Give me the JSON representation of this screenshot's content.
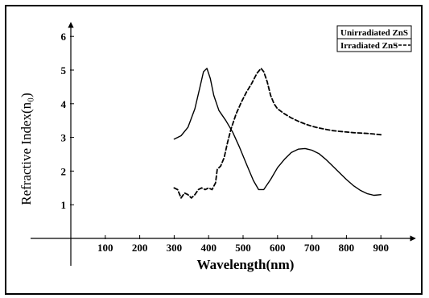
{
  "chart_data": {
    "type": "line",
    "title": "",
    "xlabel": "Wavelength(nm)",
    "ylabel": "Refractive Index(n₀)",
    "xlim": [
      0,
      1000
    ],
    "ylim": [
      0,
      6.5
    ],
    "xticks": [
      100,
      200,
      300,
      400,
      500,
      600,
      700,
      800,
      900
    ],
    "yticks": [
      1,
      2,
      3,
      4,
      5,
      6
    ],
    "grid": false,
    "legend_position": "top-right",
    "series": [
      {
        "name": "Unirradiated ZnS",
        "style": "solid",
        "color": "#000000",
        "x": [
          300,
          320,
          340,
          360,
          375,
          385,
          395,
          405,
          415,
          430,
          450,
          470,
          490,
          510,
          530,
          545,
          560,
          580,
          600,
          620,
          640,
          660,
          680,
          700,
          720,
          740,
          760,
          780,
          800,
          820,
          840,
          860,
          880,
          900
        ],
        "y": [
          2.95,
          3.05,
          3.3,
          3.85,
          4.5,
          4.95,
          5.05,
          4.75,
          4.25,
          3.8,
          3.5,
          3.15,
          2.7,
          2.2,
          1.72,
          1.45,
          1.45,
          1.75,
          2.1,
          2.35,
          2.55,
          2.65,
          2.67,
          2.62,
          2.52,
          2.35,
          2.15,
          1.95,
          1.75,
          1.57,
          1.43,
          1.33,
          1.28,
          1.3
        ]
      },
      {
        "name": "Irradiated ZnS",
        "style": "dashed",
        "color": "#000000",
        "x": [
          300,
          310,
          320,
          330,
          340,
          350,
          360,
          370,
          380,
          390,
          400,
          410,
          420,
          425,
          435,
          445,
          455,
          465,
          480,
          495,
          510,
          525,
          540,
          552,
          560,
          570,
          580,
          590,
          600,
          620,
          640,
          660,
          680,
          700,
          720,
          740,
          760,
          780,
          800,
          820,
          840,
          860,
          880,
          900
        ],
        "y": [
          1.5,
          1.45,
          1.2,
          1.35,
          1.3,
          1.2,
          1.3,
          1.45,
          1.5,
          1.45,
          1.5,
          1.45,
          1.65,
          2.05,
          2.15,
          2.4,
          2.85,
          3.25,
          3.7,
          4.05,
          4.35,
          4.6,
          4.9,
          5.05,
          4.95,
          4.65,
          4.25,
          4.0,
          3.85,
          3.7,
          3.58,
          3.48,
          3.4,
          3.33,
          3.28,
          3.24,
          3.2,
          3.18,
          3.16,
          3.14,
          3.13,
          3.12,
          3.1,
          3.08
        ]
      }
    ]
  }
}
